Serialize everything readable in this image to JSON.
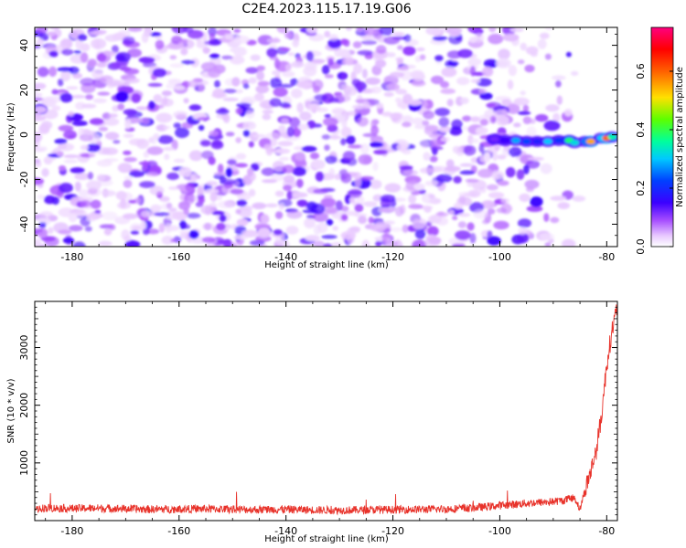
{
  "figure": {
    "title": "C2E4.2023.115.17.19.G06"
  },
  "chart_data": [
    {
      "type": "heatmap",
      "title": "C2E4.2023.115.17.19.G06",
      "xlabel": "Height of straight line (km)",
      "ylabel": "Frequency (Hz)",
      "xlim": [
        -187,
        -78
      ],
      "ylim": [
        -50,
        48
      ],
      "x_ticks": [
        -180,
        -160,
        -140,
        -120,
        -100,
        -80
      ],
      "y_ticks": [
        -40,
        -20,
        0,
        20,
        40
      ],
      "x_tick_labels": [
        "-180",
        "-160",
        "-140",
        "-120",
        "-100",
        "-80"
      ],
      "y_tick_labels": [
        "-40",
        "-20",
        "0",
        "20",
        "40"
      ],
      "colorbar": {
        "label": "Normalized spectral amplitude",
        "range": [
          0,
          0.75
        ],
        "ticks": [
          0.0,
          0.2,
          0.4,
          0.6
        ],
        "tick_labels": [
          "0.0",
          "0.2",
          "0.4",
          "0.6"
        ],
        "colormap": "gist_rainbow_r (white at 0 → purple → blue → cyan → green → yellow → red → pink)"
      },
      "background": {
        "description": "noise speckle, amplitudes ~0.0–0.15, spanning full frequency range",
        "x_range": [
          -187,
          -87
        ],
        "typical_amplitude": 0.08
      },
      "signal": {
        "description": "narrow-band feature near 0 Hz",
        "points": [
          {
            "x": -101,
            "y": -2.0,
            "value": 0.12
          },
          {
            "x": -99,
            "y": -2.5,
            "value": 0.15
          },
          {
            "x": -97,
            "y": -2.5,
            "value": 0.28
          },
          {
            "x": -95,
            "y": -3.0,
            "value": 0.22
          },
          {
            "x": -93,
            "y": -3.0,
            "value": 0.18
          },
          {
            "x": -91,
            "y": -3.0,
            "value": 0.3
          },
          {
            "x": -89,
            "y": -2.5,
            "value": 0.2
          },
          {
            "x": -87,
            "y": -2.5,
            "value": 0.38
          },
          {
            "x": -86,
            "y": -3.5,
            "value": 0.32
          },
          {
            "x": -84,
            "y": -3.0,
            "value": 0.25
          },
          {
            "x": -83,
            "y": -3.0,
            "value": 0.55
          },
          {
            "x": -81,
            "y": -1.5,
            "value": 0.3
          },
          {
            "x": -80,
            "y": -1.5,
            "value": 0.6
          },
          {
            "x": -79,
            "y": -1.0,
            "value": 0.35
          }
        ]
      }
    },
    {
      "type": "line",
      "xlabel": "Height of straight line (km)",
      "ylabel": "SNR (10 * v/v)",
      "xlim": [
        -187,
        -78
      ],
      "ylim": [
        0,
        3800
      ],
      "x_ticks": [
        -180,
        -160,
        -140,
        -120,
        -100,
        -80
      ],
      "y_ticks": [
        1000,
        2000,
        3000
      ],
      "x_tick_labels": [
        "-180",
        "-160",
        "-140",
        "-120",
        "-100",
        "-80"
      ],
      "y_tick_labels": [
        "1000",
        "2000",
        "3000"
      ],
      "series": [
        {
          "color": "#e8322a",
          "x": [
            -187,
            -185,
            -180,
            -175,
            -170,
            -165,
            -160,
            -155,
            -150,
            -145,
            -140,
            -135,
            -130,
            -125,
            -120,
            -115,
            -110,
            -105,
            -100,
            -95,
            -90,
            -88,
            -86,
            -85,
            -84,
            -83,
            -82,
            -81,
            -80,
            -79,
            -78
          ],
          "values": [
            200,
            220,
            210,
            215,
            205,
            195,
            200,
            205,
            195,
            190,
            195,
            185,
            180,
            185,
            190,
            195,
            200,
            220,
            260,
            300,
            330,
            350,
            400,
            200,
            550,
            850,
            1200,
            1800,
            2700,
            3300,
            3700
          ],
          "noise_amplitude": 70
        }
      ]
    }
  ]
}
